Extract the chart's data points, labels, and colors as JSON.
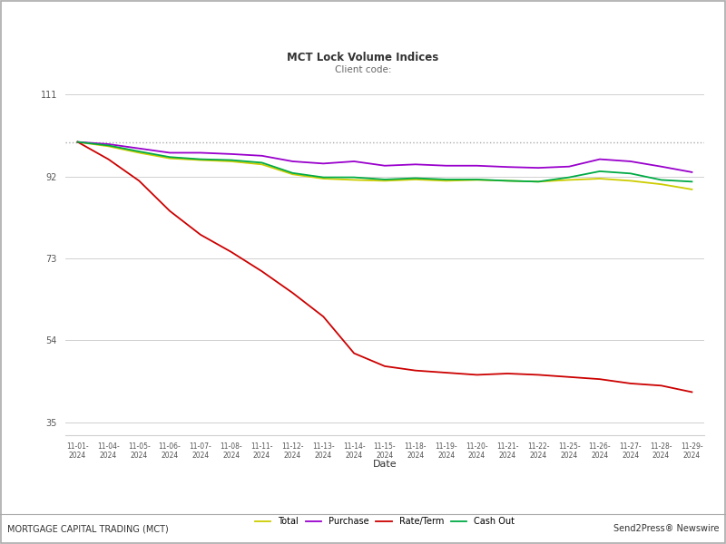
{
  "title": "MCT Lock Volume Indices",
  "subtitle": "Client code:",
  "xlabel": "Date",
  "yticks": [
    35,
    54,
    73,
    92,
    111
  ],
  "ylim": [
    32,
    114
  ],
  "background_color": "#ffffff",
  "grid_color": "#d0d0d0",
  "footer_left": "MORTGAGE CAPITAL TRADING (MCT)",
  "footer_right": "Send2Press® Newswire",
  "dates": [
    "11-01-\n2024",
    "11-04-\n2024",
    "11-05-\n2024",
    "11-06-\n2024",
    "11-07-\n2024",
    "11-08-\n2024",
    "11-11-\n2024",
    "11-12-\n2024",
    "11-13-\n2024",
    "11-14-\n2024",
    "11-15-\n2024",
    "11-18-\n2024",
    "11-19-\n2024",
    "11-20-\n2024",
    "11-21-\n2024",
    "11-22-\n2024",
    "11-25-\n2024",
    "11-26-\n2024",
    "11-27-\n2024",
    "11-28-\n2024",
    "11-29-\n2024"
  ],
  "total": [
    100,
    99.0,
    97.5,
    96.2,
    95.8,
    95.5,
    94.8,
    92.5,
    91.5,
    91.2,
    91.0,
    91.3,
    91.0,
    91.2,
    91.0,
    90.8,
    91.2,
    91.5,
    91.0,
    90.2,
    89.0
  ],
  "purchase": [
    100,
    99.5,
    98.5,
    97.5,
    97.5,
    97.2,
    96.8,
    95.5,
    95.0,
    95.5,
    94.5,
    94.8,
    94.5,
    94.5,
    94.2,
    94.0,
    94.3,
    96.0,
    95.5,
    94.3,
    93.0
  ],
  "rate_term": [
    100,
    96.0,
    91.0,
    84.0,
    78.5,
    74.5,
    70.0,
    65.0,
    59.5,
    51.0,
    48.0,
    47.0,
    46.5,
    46.0,
    46.3,
    46.0,
    45.5,
    45.0,
    44.0,
    43.5,
    42.0
  ],
  "cash_out": [
    100,
    99.2,
    97.8,
    96.5,
    96.0,
    95.8,
    95.2,
    92.8,
    91.8,
    91.8,
    91.3,
    91.6,
    91.3,
    91.3,
    91.0,
    90.8,
    91.8,
    93.2,
    92.7,
    91.2,
    90.8
  ],
  "total_color": "#cccc00",
  "purchase_color": "#9900cc",
  "rate_term_color": "#cc0000",
  "cash_out_color": "#00aa44",
  "line_width": 1.3,
  "dotted_line_y": 100,
  "dotted_line_color": "#aaaaaa"
}
